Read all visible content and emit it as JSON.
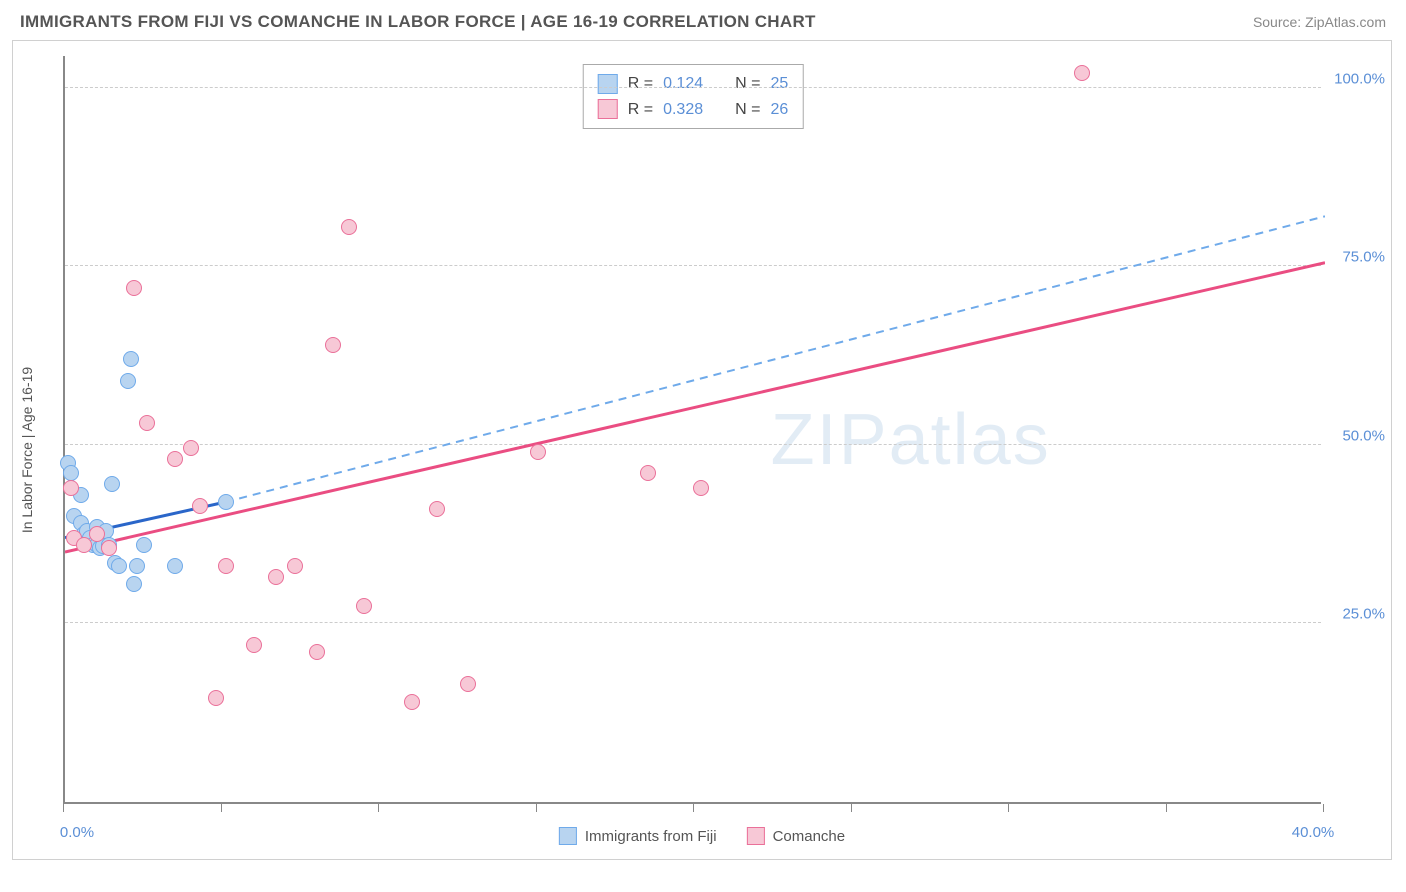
{
  "title": "IMMIGRANTS FROM FIJI VS COMANCHE IN LABOR FORCE | AGE 16-19 CORRELATION CHART",
  "source": "Source: ZipAtlas.com",
  "y_axis_label": "In Labor Force | Age 16-19",
  "watermark": "ZIPatlas",
  "chart": {
    "type": "scatter",
    "xlim": [
      0,
      40
    ],
    "ylim": [
      0,
      105
    ],
    "x_ticks": [
      0,
      5,
      10,
      15,
      20,
      25,
      30,
      35,
      40
    ],
    "x_tick_labels": {
      "0": "0.0%",
      "40": "40.0%"
    },
    "y_ticks": [
      25,
      50,
      75,
      100
    ],
    "y_tick_labels": {
      "25": "25.0%",
      "50": "50.0%",
      "75": "75.0%",
      "100": "100.0%"
    },
    "grid_color": "#cccccc",
    "background_color": "#ffffff",
    "border_color": "#d0d0d0",
    "axis_color": "#888888",
    "tick_label_color": "#5b8fd6",
    "marker_radius": 8,
    "series": [
      {
        "name": "Immigrants from Fiji",
        "fill": "#b8d4f0",
        "stroke": "#6faaea",
        "r": 0.124,
        "n": 25,
        "trend": {
          "x1": 0,
          "y1": 37,
          "x2": 5.1,
          "y2": 42,
          "solid_color": "#2a66c9",
          "dash_x2": 40,
          "dash_y2": 82,
          "dash_color": "#6faaea"
        },
        "points": [
          [
            0.1,
            47.5
          ],
          [
            0.2,
            46
          ],
          [
            0.3,
            40
          ],
          [
            0.5,
            43
          ],
          [
            0.5,
            39
          ],
          [
            0.6,
            37.5
          ],
          [
            0.7,
            38
          ],
          [
            0.8,
            37
          ],
          [
            0.9,
            36
          ],
          [
            1.0,
            38.5
          ],
          [
            1.0,
            36
          ],
          [
            1.1,
            35.5
          ],
          [
            1.2,
            35.8
          ],
          [
            1.3,
            38
          ],
          [
            1.4,
            36
          ],
          [
            1.5,
            44.5
          ],
          [
            1.6,
            33.5
          ],
          [
            1.7,
            33
          ],
          [
            2.0,
            59
          ],
          [
            2.1,
            62
          ],
          [
            2.2,
            30.5
          ],
          [
            2.3,
            33
          ],
          [
            2.5,
            36
          ],
          [
            3.5,
            33
          ],
          [
            5.1,
            42
          ]
        ]
      },
      {
        "name": "Comanche",
        "fill": "#f7c8d6",
        "stroke": "#ea7099",
        "r": 0.328,
        "n": 26,
        "trend": {
          "x1": 0,
          "y1": 35,
          "x2": 40,
          "y2": 75.5,
          "solid_color": "#ea4d82"
        },
        "points": [
          [
            0.2,
            44
          ],
          [
            0.3,
            37
          ],
          [
            0.6,
            36
          ],
          [
            1.0,
            37.5
          ],
          [
            1.4,
            35.5
          ],
          [
            2.2,
            72
          ],
          [
            2.6,
            53
          ],
          [
            3.5,
            48
          ],
          [
            4.0,
            49.5
          ],
          [
            4.3,
            41.5
          ],
          [
            4.8,
            14.5
          ],
          [
            5.1,
            33
          ],
          [
            6.0,
            22
          ],
          [
            6.7,
            31.5
          ],
          [
            7.3,
            33
          ],
          [
            8.0,
            21
          ],
          [
            8.5,
            64
          ],
          [
            9.0,
            80.5
          ],
          [
            9.5,
            27.5
          ],
          [
            11.0,
            14
          ],
          [
            11.8,
            41
          ],
          [
            12.8,
            16.5
          ],
          [
            15.0,
            49
          ],
          [
            18.5,
            46
          ],
          [
            20.2,
            44
          ],
          [
            32.3,
            102
          ]
        ]
      }
    ]
  },
  "legend_box": {
    "r_label": "R  =",
    "n_label": "N  ="
  },
  "bottom_legend": [
    {
      "label": "Immigrants from Fiji",
      "fill": "#b8d4f0",
      "stroke": "#6faaea"
    },
    {
      "label": "Comanche",
      "fill": "#f7c8d6",
      "stroke": "#ea7099"
    }
  ]
}
